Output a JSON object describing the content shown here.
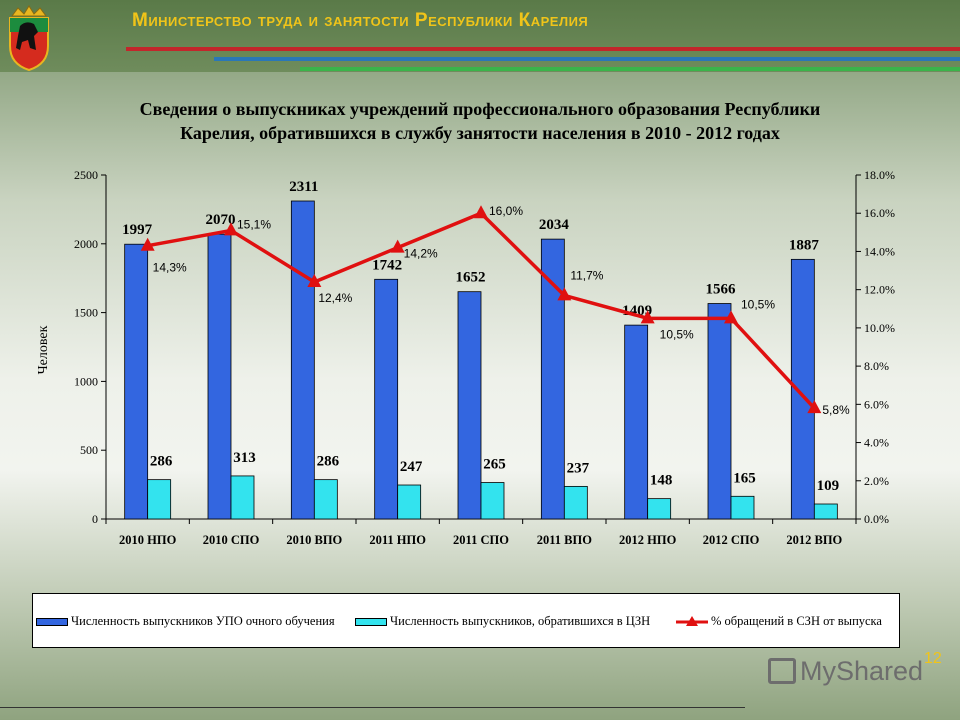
{
  "header": {
    "title": "Министерство труда и занятости Республики Карелия",
    "emblem_icon": "karelia-coat-of-arms-icon"
  },
  "chart_data": {
    "type": "bar",
    "title_lines": [
      "Сведения о выпускниках учреждений профессионального образования Республики",
      "Карелия, обратившихся в службу занятости населения в 2010 - 2012 годах"
    ],
    "categories": [
      "2010 НПО",
      "2010 СПО",
      "2010 ВПО",
      "2011 НПО",
      "2011 СПО",
      "2011 ВПО",
      "2012 НПО",
      "2012 СПО",
      "2012 ВПО"
    ],
    "series": [
      {
        "name": "Численность выпускников УПО очного обучения",
        "type": "bar",
        "axis": "left",
        "color": "#3366e0",
        "values": [
          1997,
          2070,
          2311,
          1742,
          1652,
          2034,
          1409,
          1566,
          1887
        ],
        "labels": [
          "1997",
          "2070",
          "2311",
          "1742",
          "1652",
          "2034",
          "1409",
          "1566",
          "1887"
        ]
      },
      {
        "name": "Численность выпускников, обратившихся в ЦЗН",
        "type": "bar",
        "axis": "left",
        "color": "#33e3ee",
        "values": [
          286,
          313,
          286,
          247,
          265,
          237,
          148,
          165,
          109
        ],
        "labels": [
          "286",
          "313",
          "286",
          "247",
          "265",
          "237",
          "148",
          "165",
          "109"
        ]
      },
      {
        "name": "% обращений в СЗН от выпуска",
        "type": "line",
        "axis": "right",
        "color": "#e01010",
        "values": [
          14.3,
          15.1,
          12.4,
          14.2,
          16.0,
          11.7,
          10.5,
          10.5,
          5.8
        ],
        "labels": [
          "14,3%",
          "15,1%",
          "12,4%",
          "14,2%",
          "16,0%",
          "11,7%",
          "10,5%",
          "10,5%",
          "5,8%"
        ]
      }
    ],
    "ylabel": "Человек",
    "ylim": [
      0,
      2500
    ],
    "yticks": [
      "0",
      "500",
      "1000",
      "1500",
      "2000",
      "2500"
    ],
    "y2lim": [
      0,
      18
    ],
    "y2ticks": [
      "0.0%",
      "2.0%",
      "4.0%",
      "6.0%",
      "8.0%",
      "10.0%",
      "12.0%",
      "14.0%",
      "16.0%",
      "18.0%"
    ],
    "legend_position": "bottom",
    "grid": false
  },
  "page": {
    "number": "12"
  },
  "watermark": {
    "text": "MyShared"
  }
}
